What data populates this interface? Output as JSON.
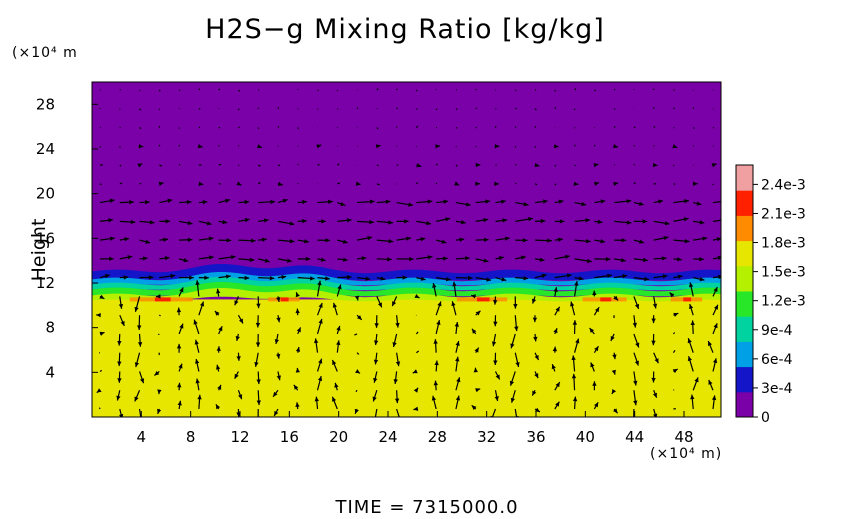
{
  "chart_data": {
    "type": "heatmap",
    "title": "H2S−g Mixing Ratio [kg/kg]",
    "ylabel": "Height",
    "x_unit_label": "(×10⁴ m)",
    "y_unit_label": "(×10⁴ m",
    "x_ticks": [
      "4",
      "8",
      "12",
      "16",
      "20",
      "24",
      "28",
      "32",
      "36",
      "40",
      "44",
      "48"
    ],
    "y_ticks": [
      "4",
      "8",
      "12",
      "16",
      "20",
      "24",
      "28"
    ],
    "xlim": [
      0,
      51
    ],
    "ylim": [
      0,
      30
    ],
    "colorbar": {
      "ticks": [
        "0",
        "3e-4",
        "6e-4",
        "9e-4",
        "1.2e-3",
        "1.5e-3",
        "1.8e-3",
        "2.1e-3",
        "2.4e-3"
      ],
      "tick_values": [
        0,
        0.0003,
        0.0006,
        0.0009,
        0.0012,
        0.0015,
        0.0018,
        0.0021,
        0.0024
      ],
      "range": [
        0,
        0.0026
      ],
      "colors": [
        "#7a00a8",
        "#1414c8",
        "#00a0e6",
        "#00d2a0",
        "#28e628",
        "#b4f000",
        "#e6e600",
        "#ff8c00",
        "#ff2000",
        "#f0a0a0"
      ]
    },
    "field_values": {
      "lower_layer": 0.0017,
      "upper_layer": 0.0,
      "interface_height": 12.5
    },
    "annotation": "TIME  =  7315000.0"
  }
}
